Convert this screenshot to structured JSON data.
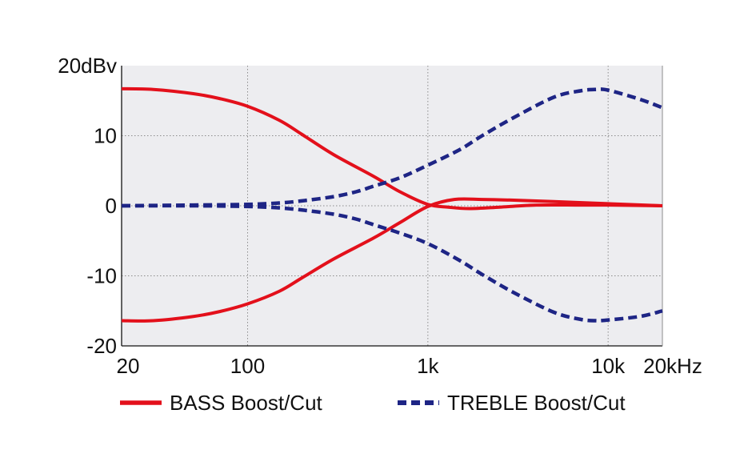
{
  "chart_data": {
    "type": "line",
    "x_scale": "log",
    "xlim": [
      20,
      20000
    ],
    "ylim": [
      -20,
      20
    ],
    "grid": true,
    "legend_position": "bottom",
    "x_ticks": [
      {
        "value": 20,
        "label": "20"
      },
      {
        "value": 100,
        "label": "100"
      },
      {
        "value": 1000,
        "label": "1k"
      },
      {
        "value": 10000,
        "label": "10k"
      },
      {
        "value": 20000,
        "label": "20kHz"
      }
    ],
    "y_ticks": [
      {
        "value": 20,
        "label": "20dBv"
      },
      {
        "value": 10,
        "label": "10"
      },
      {
        "value": 0,
        "label": "0"
      },
      {
        "value": -10,
        "label": "-10"
      },
      {
        "value": -20,
        "label": "-20"
      }
    ],
    "series": [
      {
        "name": "BASS Boost/Cut",
        "group": "bass",
        "style": "solid",
        "color": "#e3101b",
        "x": [
          20,
          30,
          50,
          70,
          100,
          150,
          200,
          300,
          500,
          700,
          1000,
          1300,
          1700,
          2500,
          4000,
          7000,
          10000,
          20000
        ],
        "y": [
          16.7,
          16.6,
          16.0,
          15.3,
          14.2,
          12.2,
          10.2,
          7.3,
          4.2,
          2.0,
          0.2,
          -0.2,
          -0.4,
          -0.2,
          0.1,
          0.1,
          0.1,
          0.0
        ]
      },
      {
        "name": "BASS Boost/Cut",
        "group": "bass",
        "style": "solid",
        "color": "#e3101b",
        "x": [
          20,
          30,
          50,
          70,
          100,
          150,
          200,
          300,
          500,
          700,
          1000,
          1400,
          2000,
          3000,
          5000,
          10000,
          20000
        ],
        "y": [
          -16.4,
          -16.4,
          -15.8,
          -15.1,
          -14.0,
          -12.2,
          -10.3,
          -7.6,
          -4.6,
          -2.4,
          -0.1,
          0.9,
          0.9,
          0.8,
          0.6,
          0.3,
          0.0
        ]
      },
      {
        "name": "TREBLE Boost/Cut",
        "group": "treble",
        "style": "dashed",
        "color": "#1e2585",
        "x": [
          20,
          50,
          100,
          150,
          200,
          300,
          400,
          500,
          700,
          1000,
          1500,
          2000,
          3000,
          5000,
          7000,
          8500,
          10000,
          15000,
          20000
        ],
        "y": [
          0.0,
          0.1,
          0.2,
          0.4,
          0.7,
          1.3,
          2.0,
          2.8,
          4.0,
          5.8,
          8.0,
          10.0,
          12.6,
          15.5,
          16.4,
          16.6,
          16.5,
          15.2,
          14.0
        ]
      },
      {
        "name": "TREBLE Boost/Cut",
        "group": "treble",
        "style": "dashed",
        "color": "#1e2585",
        "x": [
          20,
          50,
          100,
          150,
          200,
          300,
          400,
          500,
          700,
          1000,
          1500,
          2000,
          3000,
          5000,
          7000,
          8500,
          10000,
          15000,
          20000
        ],
        "y": [
          0.0,
          0.0,
          -0.1,
          -0.3,
          -0.6,
          -1.2,
          -1.9,
          -2.7,
          -3.9,
          -5.4,
          -7.8,
          -9.8,
          -12.4,
          -15.2,
          -16.2,
          -16.4,
          -16.3,
          -15.8,
          -15.0
        ]
      }
    ],
    "legend": [
      {
        "label": "BASS Boost/Cut",
        "style": "solid",
        "color": "#e3101b"
      },
      {
        "label": "TREBLE Boost/Cut",
        "style": "dashed",
        "color": "#1e2585"
      }
    ],
    "colors": {
      "plot_background": "#ededf0",
      "grid": "#8c8c8c",
      "axis": "#111111"
    }
  }
}
